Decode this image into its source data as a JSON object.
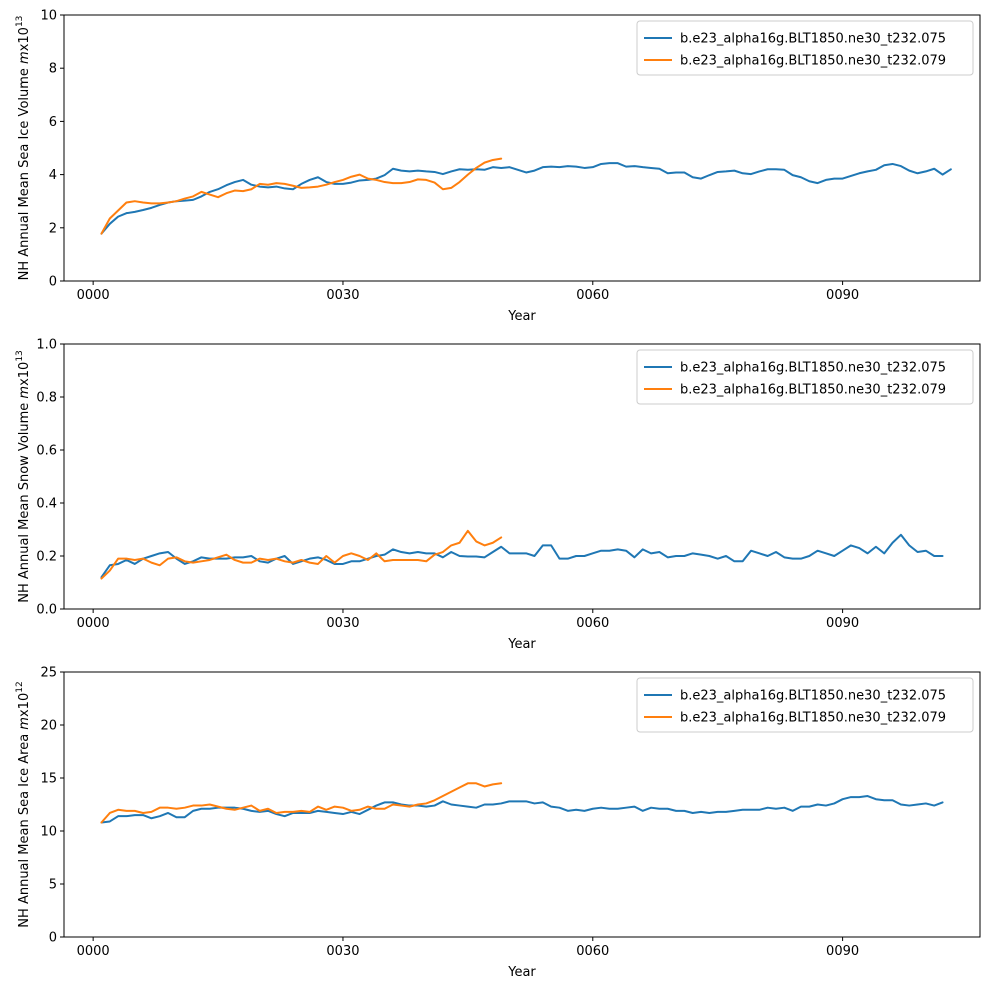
{
  "colors": {
    "series_a": "#1f77b4",
    "series_b": "#ff7f0e"
  },
  "chart_data": [
    {
      "type": "line",
      "xlabel": "Year",
      "ylabel_prefix": "NH Annual Mean Sea Ice Volume ",
      "ylabel_unit": "m",
      "ylabel_mid": "x10",
      "ylabel_exp": "13",
      "xticks": [
        0,
        30,
        60,
        90
      ],
      "xtick_labels": [
        "0000",
        "0030",
        "0060",
        "0090"
      ],
      "yticks": [
        0,
        2,
        4,
        6,
        8,
        10
      ],
      "ytick_labels": [
        "0",
        "2",
        "4",
        "6",
        "8",
        "10"
      ],
      "xlim": [
        -3.5,
        106.5
      ],
      "ylim": [
        0,
        10
      ],
      "legend_position": "upper right",
      "series": [
        {
          "name": "b.e23_alpha16g.BLT1850.ne30_t232.075",
          "x_start": 1,
          "values": [
            1.78,
            2.15,
            2.42,
            2.55,
            2.6,
            2.67,
            2.75,
            2.86,
            2.95,
            3.0,
            3.02,
            3.05,
            3.18,
            3.35,
            3.45,
            3.6,
            3.72,
            3.8,
            3.62,
            3.55,
            3.52,
            3.55,
            3.48,
            3.45,
            3.65,
            3.8,
            3.9,
            3.72,
            3.65,
            3.65,
            3.7,
            3.78,
            3.8,
            3.85,
            3.98,
            4.22,
            4.15,
            4.12,
            4.15,
            4.12,
            4.1,
            4.02,
            4.12,
            4.2,
            4.18,
            4.2,
            4.18,
            4.28,
            4.25,
            4.28,
            4.18,
            4.08,
            4.15,
            4.28,
            4.3,
            4.28,
            4.32,
            4.3,
            4.25,
            4.28,
            4.4,
            4.43,
            4.43,
            4.3,
            4.32,
            4.28,
            4.25,
            4.22,
            4.05,
            4.08,
            4.08,
            3.9,
            3.85,
            3.98,
            4.1,
            4.12,
            4.15,
            4.05,
            4.02,
            4.12,
            4.2,
            4.2,
            4.18,
            3.98,
            3.9,
            3.75,
            3.68,
            3.8,
            3.85,
            3.85,
            3.95,
            4.05,
            4.12,
            4.18,
            4.35,
            4.4,
            4.32,
            4.15,
            4.05,
            4.12,
            4.22,
            4.0,
            4.2
          ]
        },
        {
          "name": "b.e23_alpha16g.BLT1850.ne30_t232.079",
          "x_start": 1,
          "values": [
            1.78,
            2.35,
            2.65,
            2.95,
            3.0,
            2.95,
            2.92,
            2.92,
            2.95,
            3.0,
            3.1,
            3.18,
            3.35,
            3.25,
            3.15,
            3.3,
            3.4,
            3.38,
            3.45,
            3.65,
            3.62,
            3.68,
            3.65,
            3.58,
            3.5,
            3.52,
            3.55,
            3.62,
            3.72,
            3.8,
            3.92,
            4.0,
            3.85,
            3.8,
            3.72,
            3.68,
            3.68,
            3.72,
            3.82,
            3.8,
            3.7,
            3.45,
            3.5,
            3.72,
            4.0,
            4.25,
            4.45,
            4.55,
            4.6
          ]
        }
      ]
    },
    {
      "type": "line",
      "xlabel": "Year",
      "ylabel_prefix": "NH Annual Mean Snow Volume ",
      "ylabel_unit": "m",
      "ylabel_mid": "x10",
      "ylabel_exp": "13",
      "xticks": [
        0,
        30,
        60,
        90
      ],
      "xtick_labels": [
        "0000",
        "0030",
        "0060",
        "0090"
      ],
      "yticks": [
        0.0,
        0.2,
        0.4,
        0.6,
        0.8,
        1.0
      ],
      "ytick_labels": [
        "0.0",
        "0.2",
        "0.4",
        "0.6",
        "0.8",
        "1.0"
      ],
      "xlim": [
        -3.5,
        106.5
      ],
      "ylim": [
        0,
        1.0
      ],
      "legend_position": "upper right",
      "series": [
        {
          "name": "b.e23_alpha16g.BLT1850.ne30_t232.075",
          "x_start": 1,
          "values": [
            0.12,
            0.165,
            0.17,
            0.185,
            0.17,
            0.19,
            0.2,
            0.21,
            0.215,
            0.19,
            0.17,
            0.18,
            0.195,
            0.19,
            0.19,
            0.19,
            0.195,
            0.195,
            0.2,
            0.18,
            0.175,
            0.19,
            0.2,
            0.17,
            0.18,
            0.19,
            0.195,
            0.185,
            0.17,
            0.17,
            0.18,
            0.18,
            0.19,
            0.2,
            0.205,
            0.225,
            0.215,
            0.21,
            0.215,
            0.21,
            0.21,
            0.195,
            0.215,
            0.2,
            0.198,
            0.198,
            0.195,
            0.215,
            0.235,
            0.21,
            0.21,
            0.21,
            0.2,
            0.24,
            0.24,
            0.19,
            0.19,
            0.2,
            0.2,
            0.21,
            0.22,
            0.22,
            0.225,
            0.22,
            0.195,
            0.225,
            0.21,
            0.215,
            0.195,
            0.2,
            0.2,
            0.21,
            0.205,
            0.2,
            0.19,
            0.2,
            0.18,
            0.18,
            0.22,
            0.21,
            0.2,
            0.215,
            0.195,
            0.19,
            0.19,
            0.2,
            0.22,
            0.21,
            0.2,
            0.22,
            0.24,
            0.23,
            0.21,
            0.235,
            0.21,
            0.25,
            0.28,
            0.24,
            0.215,
            0.22,
            0.2,
            0.2
          ]
        },
        {
          "name": "b.e23_alpha16g.BLT1850.ne30_t232.079",
          "x_start": 1,
          "values": [
            0.115,
            0.145,
            0.19,
            0.19,
            0.185,
            0.19,
            0.175,
            0.165,
            0.19,
            0.195,
            0.18,
            0.175,
            0.18,
            0.185,
            0.195,
            0.205,
            0.185,
            0.175,
            0.175,
            0.19,
            0.185,
            0.19,
            0.18,
            0.175,
            0.185,
            0.175,
            0.17,
            0.2,
            0.175,
            0.2,
            0.21,
            0.2,
            0.185,
            0.21,
            0.18,
            0.185,
            0.185,
            0.185,
            0.185,
            0.18,
            0.205,
            0.215,
            0.24,
            0.25,
            0.295,
            0.255,
            0.24,
            0.25,
            0.27
          ]
        }
      ]
    },
    {
      "type": "line",
      "xlabel": "Year",
      "ylabel_prefix": "NH Annual Mean Sea Ice Area ",
      "ylabel_unit": "m",
      "ylabel_mid": "x10",
      "ylabel_exp": "12",
      "xticks": [
        0,
        30,
        60,
        90
      ],
      "xtick_labels": [
        "0000",
        "0030",
        "0060",
        "0090"
      ],
      "yticks": [
        0,
        5,
        10,
        15,
        20,
        25
      ],
      "ytick_labels": [
        "0",
        "5",
        "10",
        "15",
        "20",
        "25"
      ],
      "xlim": [
        -3.5,
        106.5
      ],
      "ylim": [
        0,
        25
      ],
      "legend_position": "upper right",
      "series": [
        {
          "name": "b.e23_alpha16g.BLT1850.ne30_t232.075",
          "x_start": 1,
          "values": [
            10.8,
            10.9,
            11.4,
            11.4,
            11.5,
            11.5,
            11.2,
            11.4,
            11.7,
            11.3,
            11.3,
            11.9,
            12.1,
            12.1,
            12.2,
            12.2,
            12.2,
            12.1,
            11.9,
            11.8,
            11.9,
            11.6,
            11.4,
            11.7,
            11.7,
            11.7,
            11.9,
            11.8,
            11.7,
            11.6,
            11.8,
            11.6,
            12.0,
            12.4,
            12.7,
            12.7,
            12.5,
            12.4,
            12.4,
            12.3,
            12.4,
            12.8,
            12.5,
            12.4,
            12.3,
            12.2,
            12.5,
            12.5,
            12.6,
            12.8,
            12.8,
            12.8,
            12.6,
            12.7,
            12.3,
            12.2,
            11.9,
            12.0,
            11.9,
            12.1,
            12.2,
            12.1,
            12.1,
            12.2,
            12.3,
            11.9,
            12.2,
            12.1,
            12.1,
            11.9,
            11.9,
            11.7,
            11.8,
            11.7,
            11.8,
            11.8,
            11.9,
            12.0,
            12.0,
            12.0,
            12.2,
            12.1,
            12.2,
            11.9,
            12.3,
            12.3,
            12.5,
            12.4,
            12.6,
            13.0,
            13.2,
            13.2,
            13.3,
            13.0,
            12.9,
            12.9,
            12.5,
            12.4,
            12.5,
            12.6,
            12.4,
            12.7
          ]
        },
        {
          "name": "b.e23_alpha16g.BLT1850.ne30_t232.079",
          "x_start": 1,
          "values": [
            10.8,
            11.7,
            12.0,
            11.9,
            11.9,
            11.7,
            11.8,
            12.2,
            12.2,
            12.1,
            12.2,
            12.4,
            12.4,
            12.5,
            12.3,
            12.1,
            12.0,
            12.2,
            12.4,
            11.9,
            12.1,
            11.7,
            11.8,
            11.8,
            11.9,
            11.8,
            12.3,
            12.0,
            12.3,
            12.2,
            11.9,
            12.0,
            12.3,
            12.1,
            12.1,
            12.5,
            12.4,
            12.3,
            12.5,
            12.6,
            12.9,
            13.3,
            13.7,
            14.1,
            14.5,
            14.5,
            14.2,
            14.4,
            14.5
          ]
        }
      ]
    }
  ]
}
